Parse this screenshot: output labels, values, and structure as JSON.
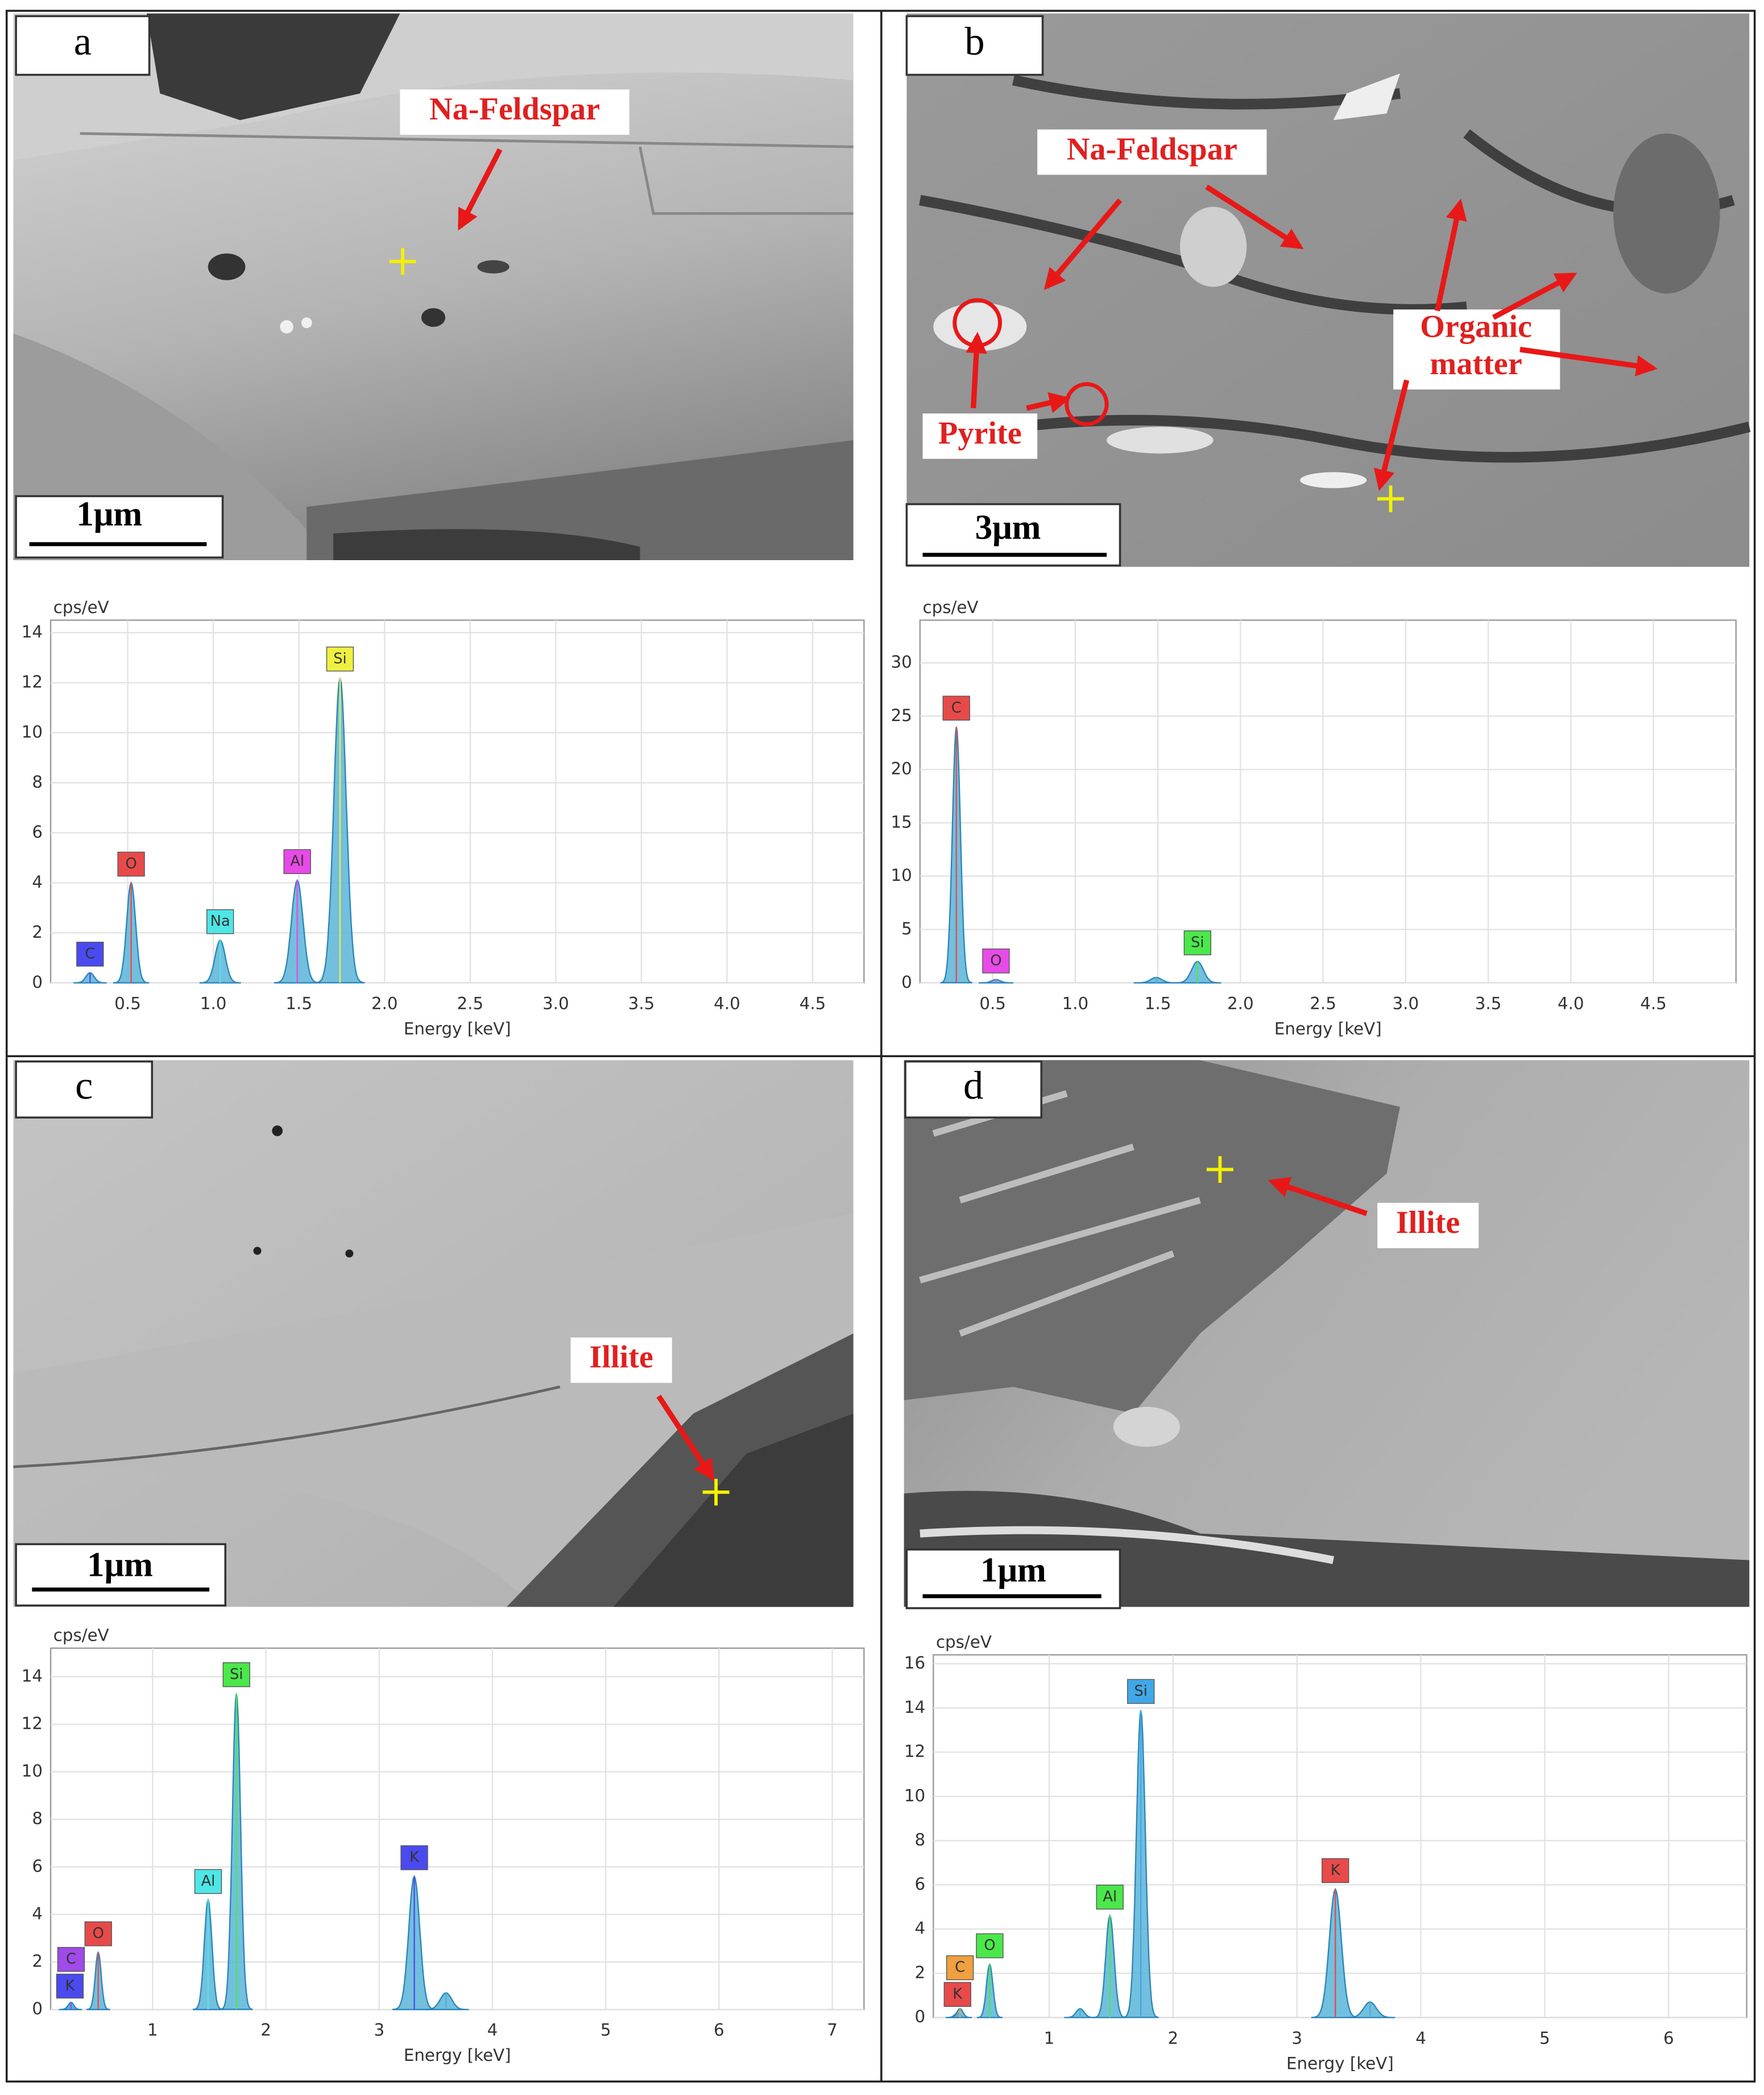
{
  "images": [
    {
      "label": "a",
      "scale_bar": "1μm",
      "annotations": [
        [
          "Na-Feldspar"
        ]
      ]
    },
    {
      "label": "b",
      "scale_bar": "3μm",
      "annotations": [
        [
          "Na-Feldspar"
        ],
        [
          "Organic",
          "matter"
        ],
        [
          "Pyrite"
        ]
      ]
    },
    {
      "label": "c",
      "scale_bar": "1μm",
      "annotations": [
        [
          "Illite"
        ]
      ]
    },
    {
      "label": "d",
      "scale_bar": "1μm",
      "annotations": [
        [
          "Illite"
        ]
      ]
    }
  ],
  "chart_data": [
    {
      "type": "spectrum",
      "y_label": "cps/eV",
      "x_label": "Energy [keV]",
      "grid": true,
      "xlim": [
        0.05,
        4.8
      ],
      "xticks": [
        0.5,
        {
          "value": 1,
          "label": "1.0"
        },
        1.5,
        {
          "value": 2,
          "label": "2.0"
        },
        2.5,
        {
          "value": 3,
          "label": "3.0"
        },
        3.5,
        {
          "value": 4,
          "label": "4.0"
        },
        4.5
      ],
      "ylim": [
        0,
        14.5
      ],
      "yticks": [
        0,
        2,
        4,
        6,
        8,
        10,
        12,
        14
      ],
      "peaks": [
        {
          "name": "C",
          "x": 0.28,
          "value": 0.4,
          "color": "#4a4af0"
        },
        {
          "name": "O",
          "x": 0.52,
          "value": 4.0,
          "color": "#e84a4a"
        },
        {
          "name": "Na",
          "x": 1.04,
          "value": 1.7,
          "color": "#4ee6e6"
        },
        {
          "name": "Al",
          "x": 1.49,
          "value": 4.1,
          "color": "#e84ae8"
        },
        {
          "name": "Si",
          "x": 1.74,
          "value": 12.2,
          "color": "#f0f040"
        }
      ]
    },
    {
      "type": "spectrum",
      "y_label": "cps/eV",
      "x_label": "Energy [keV]",
      "grid": true,
      "xlim": [
        0.06,
        5.0
      ],
      "xticks": [
        0.5,
        {
          "value": 1,
          "label": "1.0"
        },
        1.5,
        {
          "value": 2,
          "label": "2.0"
        },
        2.5,
        {
          "value": 3,
          "label": "3.0"
        },
        3.5,
        {
          "value": 4,
          "label": "4.0"
        },
        4.5
      ],
      "ylim": [
        0,
        34
      ],
      "yticks": [
        0,
        5,
        10,
        15,
        20,
        25,
        30
      ],
      "peaks": [
        {
          "name": "C",
          "x": 0.28,
          "value": 24,
          "color": "#e84a4a"
        },
        {
          "name": "O",
          "x": 0.52,
          "value": 0.3,
          "color": "#e84ae8"
        },
        {
          "name": null,
          "x": 1.49,
          "value": 0.5,
          "color": "#4fb0d8"
        },
        {
          "name": "Si",
          "x": 1.74,
          "value": 2.0,
          "color": "#4ae84a"
        }
      ]
    },
    {
      "type": "spectrum",
      "y_label": "cps/eV",
      "x_label": "Energy [keV]",
      "grid": true,
      "xlim": [
        0.1,
        7.28
      ],
      "xticks": [
        1,
        2,
        3,
        4,
        5,
        6,
        7
      ],
      "ylim": [
        0,
        15.2
      ],
      "yticks": [
        0,
        2,
        4,
        6,
        8,
        10,
        12,
        14
      ],
      "peaks": [
        {
          "name": "K",
          "x": 0.27,
          "value": 0.2,
          "color": "#4a4af0"
        },
        {
          "name": "C",
          "x": 0.28,
          "value": 0.3,
          "color": "#a04ae8"
        },
        {
          "name": "O",
          "x": 0.52,
          "value": 2.4,
          "color": "#e84a4a"
        },
        {
          "name": "Al",
          "x": 1.49,
          "value": 4.6,
          "color": "#4ee6e6"
        },
        {
          "name": "Si",
          "x": 1.74,
          "value": 13.3,
          "color": "#4ae84a"
        },
        {
          "name": "K",
          "x": 3.31,
          "value": 5.6,
          "color": "#4a4af0"
        },
        {
          "name": null,
          "x": 3.59,
          "value": 0.7,
          "color": "#4fb0d8"
        }
      ]
    },
    {
      "type": "spectrum",
      "y_label": "cps/eV",
      "x_label": "Energy [keV]",
      "grid": true,
      "xlim": [
        0.065,
        6.63
      ],
      "xticks": [
        1,
        2,
        3,
        4,
        5,
        6
      ],
      "ylim": [
        0,
        16.4
      ],
      "yticks": [
        0,
        2,
        4,
        6,
        8,
        10,
        12,
        14,
        16
      ],
      "peaks": [
        {
          "name": "K",
          "x": 0.26,
          "value": 0.2,
          "color": "#e84a4a"
        },
        {
          "name": "C",
          "x": 0.28,
          "value": 0.4,
          "color": "#f0a040"
        },
        {
          "name": "O",
          "x": 0.52,
          "value": 2.4,
          "color": "#4ae84a"
        },
        {
          "name": null,
          "x": 1.25,
          "value": 0.4,
          "color": "#4fb0d8"
        },
        {
          "name": "Al",
          "x": 1.49,
          "value": 4.6,
          "color": "#4ae84a"
        },
        {
          "name": "Si",
          "x": 1.74,
          "value": 13.9,
          "color": "#40a8e8"
        },
        {
          "name": "K",
          "x": 3.31,
          "value": 5.8,
          "color": "#e84a4a"
        },
        {
          "name": null,
          "x": 3.59,
          "value": 0.7,
          "color": "#4fb0d8"
        }
      ]
    }
  ]
}
